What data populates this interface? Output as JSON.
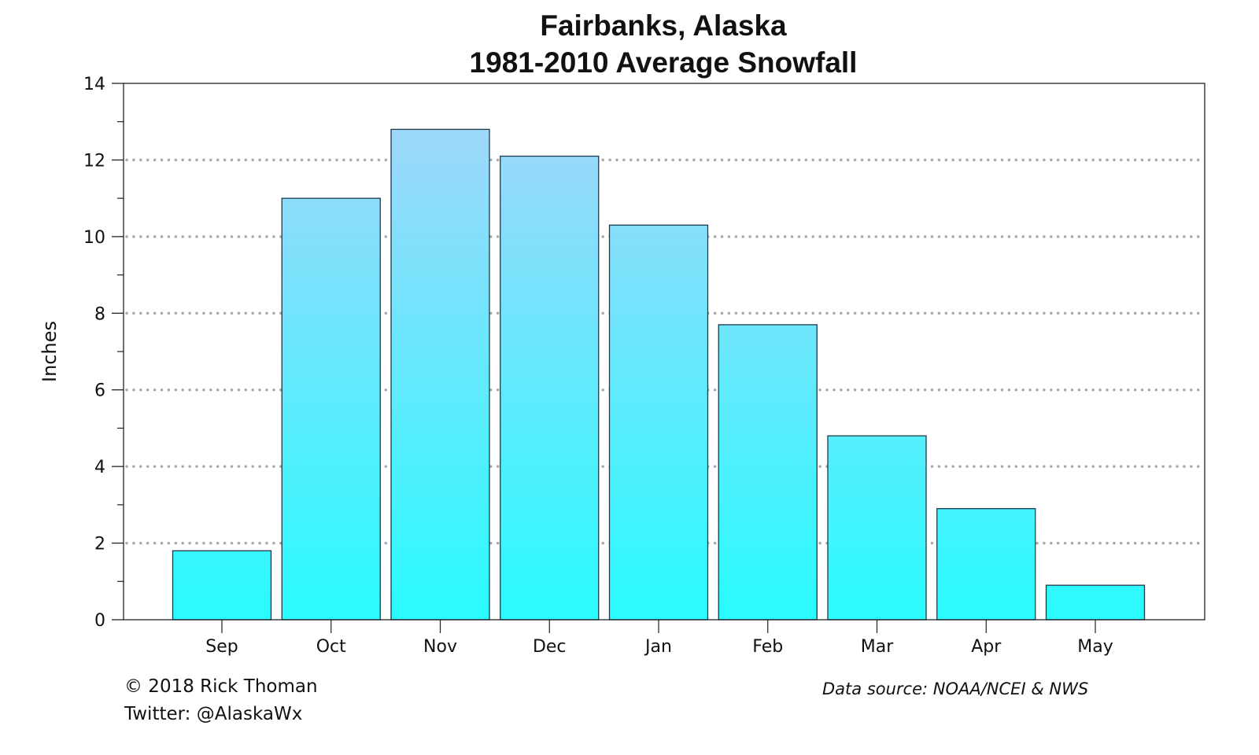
{
  "title": {
    "line1": "Fairbanks, Alaska",
    "line2": "1981-2010 Average Snowfall"
  },
  "footer": {
    "copyright": "© 2018 Rick Thoman",
    "twitter": "Twitter: @AlaskaWx",
    "source": "Data source: NOAA/NCEI & NWS"
  },
  "colors": {
    "bar_top": "#a9d4fb",
    "bar_bottom": "#29fbfe",
    "bar_stroke": "#1c3a4a",
    "grid": "#a8a8a8",
    "axis": "#222222"
  },
  "chart_data": {
    "type": "bar",
    "title": "Fairbanks, Alaska 1981-2010 Average Snowfall",
    "xlabel": "",
    "ylabel": "Inches",
    "categories": [
      "Sep",
      "Oct",
      "Nov",
      "Dec",
      "Jan",
      "Feb",
      "Mar",
      "Apr",
      "May"
    ],
    "values": [
      1.8,
      11.0,
      12.8,
      12.1,
      10.3,
      7.7,
      4.8,
      2.9,
      0.9
    ],
    "ylim": [
      0,
      14
    ],
    "yticks": [
      0,
      2,
      4,
      6,
      8,
      10,
      12,
      14
    ],
    "grid": "horizontal dotted at major ticks",
    "legend": "none"
  }
}
